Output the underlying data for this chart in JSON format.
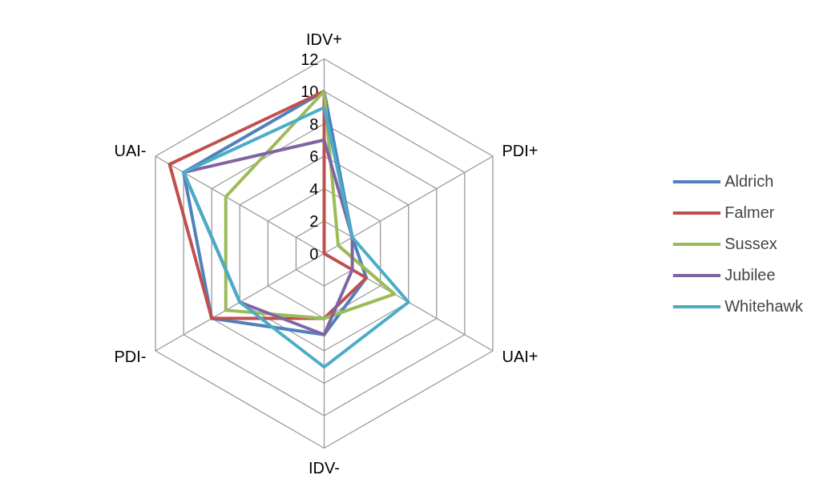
{
  "chart_data": {
    "type": "radar",
    "categories": [
      "IDV+",
      "PDI+",
      "UAI+",
      "IDV-",
      "PDI-",
      "UAI-"
    ],
    "ylim": [
      0,
      12
    ],
    "yticks": [
      0,
      2,
      4,
      6,
      8,
      10,
      12
    ],
    "legend": "right",
    "series": [
      {
        "name": "Aldrich",
        "color": "#4f81bd",
        "values": [
          10,
          2,
          3,
          5,
          8,
          10
        ]
      },
      {
        "name": "Falmer",
        "color": "#c0504d",
        "values": [
          10,
          0,
          3,
          4,
          8,
          11
        ]
      },
      {
        "name": "Sussex",
        "color": "#9bbb59",
        "values": [
          10,
          1,
          5,
          4,
          7,
          7
        ]
      },
      {
        "name": "Jubilee",
        "color": "#8064a2",
        "values": [
          7,
          2,
          2,
          5,
          6,
          10
        ]
      },
      {
        "name": "Whitehawk",
        "color": "#4bacc6",
        "values": [
          9,
          2,
          6,
          7,
          6,
          10
        ]
      }
    ]
  }
}
